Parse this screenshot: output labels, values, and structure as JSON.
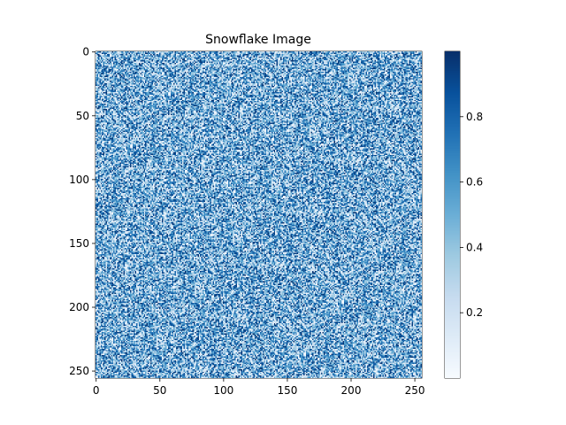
{
  "chart_data": {
    "type": "heatmap",
    "title": "Snowflake Image",
    "xlabel": "",
    "ylabel": "",
    "grid_size": [
      256,
      256
    ],
    "xlim": [
      0,
      256
    ],
    "ylim": [
      256,
      0
    ],
    "x_ticks": [
      0,
      50,
      100,
      150,
      200,
      250
    ],
    "x_tick_labels": [
      "0",
      "50",
      "100",
      "150",
      "200",
      "250"
    ],
    "y_ticks": [
      0,
      50,
      100,
      150,
      200,
      250
    ],
    "y_tick_labels": [
      "0",
      "50",
      "100",
      "150",
      "200",
      "250"
    ],
    "value_range": [
      0,
      1
    ],
    "value_distribution": "uniform random",
    "colormap": "Blues",
    "colormap_stops": [
      "#f7fbff",
      "#deebf7",
      "#c6dbef",
      "#9ecae1",
      "#6baed6",
      "#4292c6",
      "#2171b5",
      "#08519c",
      "#08306b"
    ],
    "colorbar": {
      "range": [
        0,
        1
      ],
      "ticks": [
        0.2,
        0.4,
        0.6,
        0.8
      ],
      "tick_labels": [
        "0.2",
        "0.4",
        "0.6",
        "0.8"
      ]
    },
    "grid": false,
    "legend": "none"
  }
}
